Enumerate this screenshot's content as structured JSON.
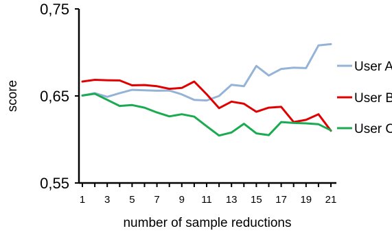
{
  "chart_data": {
    "type": "line",
    "title": "",
    "xlabel": "number of sample reductions",
    "ylabel": "score",
    "x": [
      1,
      2,
      3,
      4,
      5,
      6,
      7,
      8,
      9,
      10,
      11,
      12,
      13,
      14,
      15,
      16,
      17,
      18,
      19,
      20,
      21
    ],
    "x_tick_labels": [
      "1",
      "3",
      "5",
      "7",
      "9",
      "11",
      "13",
      "15",
      "17",
      "19",
      "21"
    ],
    "x_tick_values": [
      1,
      3,
      5,
      7,
      9,
      11,
      13,
      15,
      17,
      19,
      21
    ],
    "y_tick_labels": [
      "0,55",
      "0,65",
      "0,75"
    ],
    "y_tick_values": [
      0.55,
      0.65,
      0.75
    ],
    "ylim": [
      0.55,
      0.75
    ],
    "xlim": [
      0.5,
      21.5
    ],
    "grid": false,
    "legend_position": "right",
    "series": [
      {
        "name": "User A",
        "color": "#95b3d7",
        "values": [
          0.6505,
          0.6532,
          0.649,
          0.6532,
          0.657,
          0.6565,
          0.656,
          0.6562,
          0.6518,
          0.6455,
          0.6448,
          0.65,
          0.6628,
          0.6612,
          0.6845,
          0.6735,
          0.681,
          0.6825,
          0.682,
          0.708,
          0.7095
        ]
      },
      {
        "name": "User B",
        "color": "#e00000",
        "values": [
          0.6665,
          0.6685,
          0.668,
          0.6678,
          0.6622,
          0.6625,
          0.6612,
          0.6582,
          0.6592,
          0.6665,
          0.652,
          0.636,
          0.6435,
          0.641,
          0.6318,
          0.6365,
          0.6375,
          0.62,
          0.6225,
          0.629,
          0.61
        ]
      },
      {
        "name": "User C",
        "color": "#1aaa50",
        "values": [
          0.6505,
          0.6525,
          0.6455,
          0.6385,
          0.6395,
          0.6365,
          0.631,
          0.6265,
          0.629,
          0.6262,
          0.6152,
          0.6045,
          0.608,
          0.618,
          0.607,
          0.605,
          0.62,
          0.619,
          0.6185,
          0.6175,
          0.6105
        ]
      }
    ]
  }
}
